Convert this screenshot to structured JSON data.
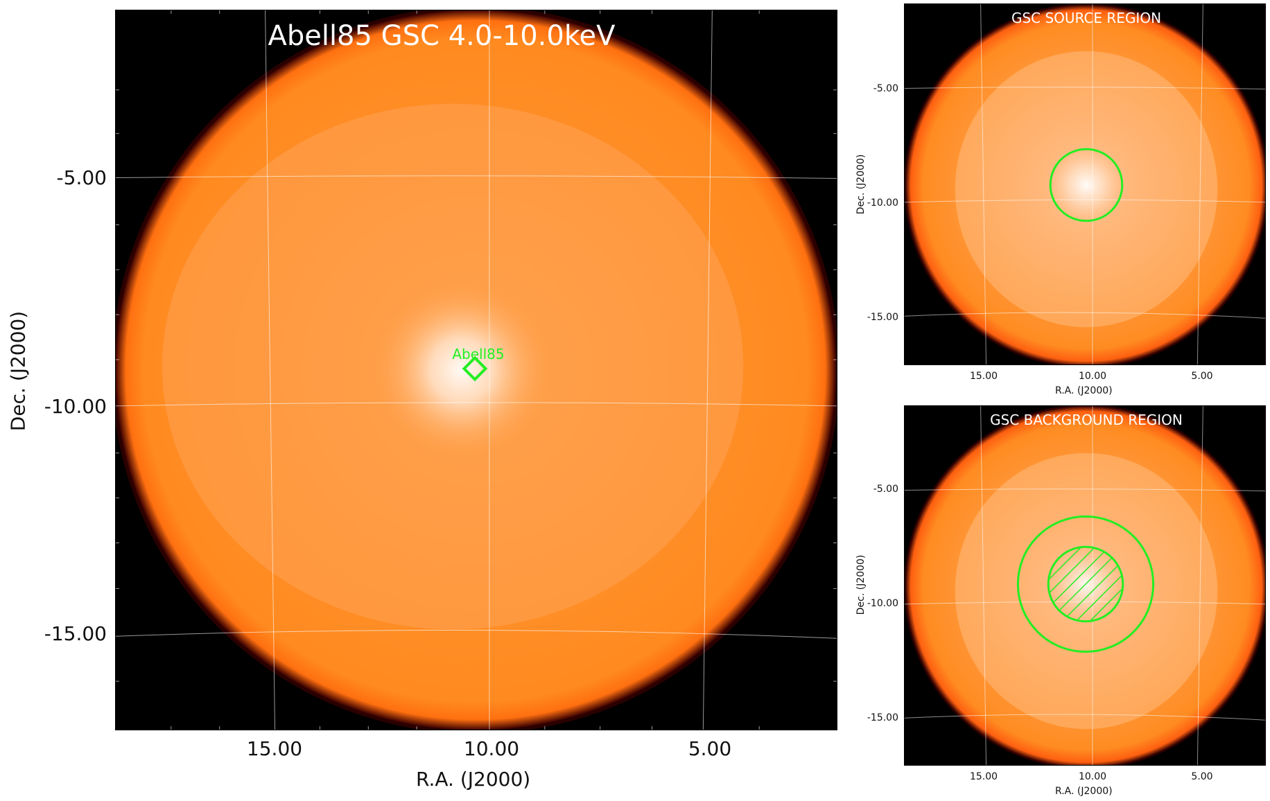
{
  "main": {
    "title": "Abell85 GSC 4.0-10.0keV",
    "ylabel": "Dec. (J2000)",
    "xlabel": "R.A. (J2000)",
    "yticks": [
      "-5.00",
      "-10.00",
      "-15.00"
    ],
    "xticks": [
      "15.00",
      "10.00",
      "5.00"
    ],
    "source_label": "Abell85"
  },
  "source_panel": {
    "title": "GSC SOURCE REGION",
    "ylabel": "Dec. (J2000)",
    "xlabel": "R.A. (J2000)",
    "yticks": [
      "-5.00",
      "-10.00",
      "-15.00"
    ],
    "xticks": [
      "15.00",
      "10.00",
      "5.00"
    ]
  },
  "background_panel": {
    "title": "GSC BACKGROUND REGION",
    "ylabel": "Dec. (J2000)",
    "xlabel": "R.A. (J2000)",
    "yticks": [
      "-5.00",
      "-10.00",
      "-15.00"
    ],
    "xticks": [
      "15.00",
      "10.00",
      "5.00"
    ]
  },
  "colors": {
    "sky": "#ff8c1f",
    "background": "#000000",
    "region": "#22ee22",
    "grid": "#ffffff"
  }
}
